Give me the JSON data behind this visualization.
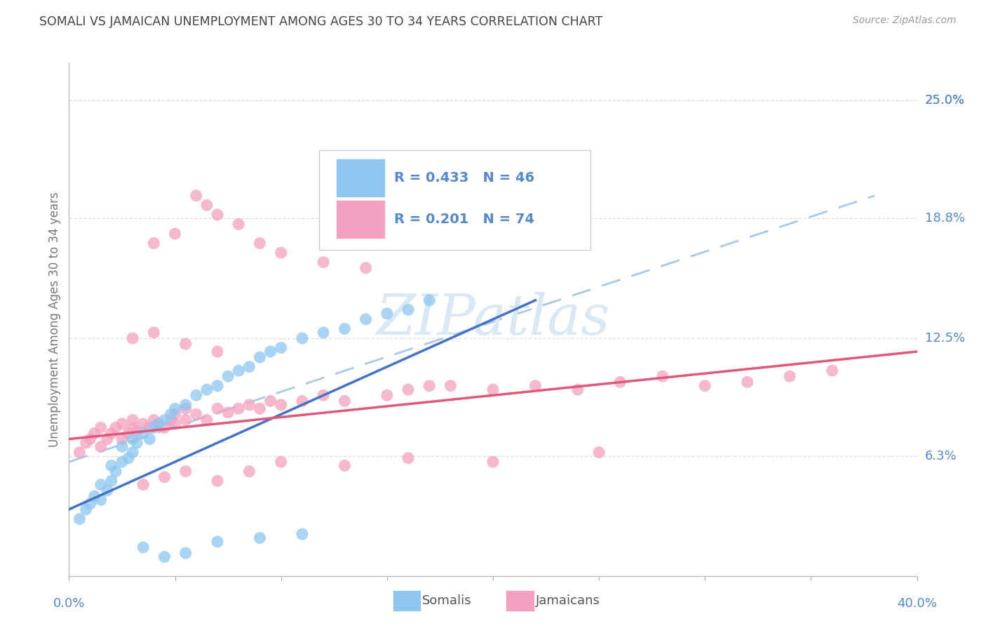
{
  "title": "SOMALI VS JAMAICAN UNEMPLOYMENT AMONG AGES 30 TO 34 YEARS CORRELATION CHART",
  "source": "Source: ZipAtlas.com",
  "ylabel": "Unemployment Among Ages 30 to 34 years",
  "ytick_labels": [
    "25.0%",
    "18.8%",
    "12.5%",
    "6.3%"
  ],
  "ytick_values": [
    0.25,
    0.188,
    0.125,
    0.063
  ],
  "xlim": [
    0.0,
    0.4
  ],
  "ylim": [
    0.0,
    0.27
  ],
  "somali_R": 0.433,
  "somali_N": 46,
  "jamaican_R": 0.201,
  "jamaican_N": 74,
  "somali_color": "#8EC6F0",
  "jamaican_color": "#F4A0C0",
  "somali_line_color": "#4472C4",
  "jamaican_line_color": "#E05878",
  "dashed_line_color": "#A8C8E8",
  "background_color": "#FFFFFF",
  "grid_color": "#DDDDDD",
  "title_color": "#444444",
  "axis_label_color": "#5588CC",
  "watermark_color": "#D8E8F4",
  "somali_x": [
    0.005,
    0.008,
    0.01,
    0.012,
    0.015,
    0.015,
    0.018,
    0.02,
    0.02,
    0.022,
    0.025,
    0.025,
    0.028,
    0.03,
    0.03,
    0.032,
    0.035,
    0.038,
    0.04,
    0.042,
    0.045,
    0.048,
    0.05,
    0.055,
    0.06,
    0.065,
    0.07,
    0.075,
    0.08,
    0.085,
    0.09,
    0.095,
    0.1,
    0.11,
    0.12,
    0.13,
    0.14,
    0.15,
    0.16,
    0.17,
    0.035,
    0.045,
    0.055,
    0.07,
    0.09,
    0.11
  ],
  "somali_y": [
    0.03,
    0.035,
    0.038,
    0.042,
    0.04,
    0.048,
    0.045,
    0.05,
    0.058,
    0.055,
    0.06,
    0.068,
    0.062,
    0.065,
    0.072,
    0.07,
    0.075,
    0.072,
    0.078,
    0.08,
    0.082,
    0.085,
    0.088,
    0.09,
    0.095,
    0.098,
    0.1,
    0.105,
    0.108,
    0.11,
    0.115,
    0.118,
    0.12,
    0.125,
    0.128,
    0.13,
    0.135,
    0.138,
    0.14,
    0.145,
    0.015,
    0.01,
    0.012,
    0.018,
    0.02,
    0.022
  ],
  "jamaican_x": [
    0.005,
    0.008,
    0.01,
    0.012,
    0.015,
    0.015,
    0.018,
    0.02,
    0.022,
    0.025,
    0.025,
    0.028,
    0.03,
    0.03,
    0.032,
    0.035,
    0.038,
    0.04,
    0.042,
    0.045,
    0.048,
    0.05,
    0.05,
    0.055,
    0.055,
    0.06,
    0.065,
    0.07,
    0.075,
    0.08,
    0.085,
    0.09,
    0.095,
    0.1,
    0.11,
    0.12,
    0.13,
    0.15,
    0.16,
    0.17,
    0.18,
    0.2,
    0.22,
    0.24,
    0.26,
    0.28,
    0.3,
    0.32,
    0.34,
    0.36,
    0.04,
    0.05,
    0.06,
    0.065,
    0.07,
    0.08,
    0.09,
    0.1,
    0.12,
    0.14,
    0.035,
    0.045,
    0.055,
    0.07,
    0.085,
    0.1,
    0.13,
    0.16,
    0.2,
    0.25,
    0.03,
    0.04,
    0.055,
    0.07
  ],
  "jamaican_y": [
    0.065,
    0.07,
    0.072,
    0.075,
    0.068,
    0.078,
    0.072,
    0.075,
    0.078,
    0.072,
    0.08,
    0.075,
    0.078,
    0.082,
    0.076,
    0.08,
    0.078,
    0.082,
    0.08,
    0.078,
    0.082,
    0.08,
    0.085,
    0.082,
    0.088,
    0.085,
    0.082,
    0.088,
    0.086,
    0.088,
    0.09,
    0.088,
    0.092,
    0.09,
    0.092,
    0.095,
    0.092,
    0.095,
    0.098,
    0.1,
    0.1,
    0.098,
    0.1,
    0.098,
    0.102,
    0.105,
    0.1,
    0.102,
    0.105,
    0.108,
    0.175,
    0.18,
    0.2,
    0.195,
    0.19,
    0.185,
    0.175,
    0.17,
    0.165,
    0.162,
    0.048,
    0.052,
    0.055,
    0.05,
    0.055,
    0.06,
    0.058,
    0.062,
    0.06,
    0.065,
    0.125,
    0.128,
    0.122,
    0.118
  ],
  "somali_trendline_x": [
    0.0,
    0.22
  ],
  "somali_trendline_y": [
    0.035,
    0.145
  ],
  "jamaican_trendline_x": [
    0.0,
    0.4
  ],
  "jamaican_trendline_y": [
    0.072,
    0.118
  ],
  "dashed_trendline_x": [
    0.0,
    0.38
  ],
  "dashed_trendline_y": [
    0.06,
    0.2
  ]
}
